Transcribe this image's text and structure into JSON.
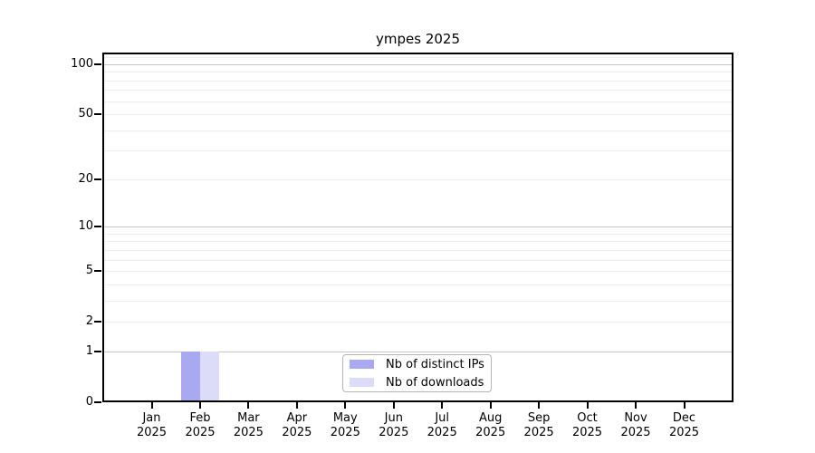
{
  "title": "ympes 2025",
  "chart_data": {
    "type": "bar",
    "title": "ympes 2025",
    "categories": [
      "Jan 2025",
      "Feb 2025",
      "Mar 2025",
      "Apr 2025",
      "May 2025",
      "Jun 2025",
      "Jul 2025",
      "Aug 2025",
      "Sep 2025",
      "Oct 2025",
      "Nov 2025",
      "Dec 2025"
    ],
    "series": [
      {
        "name": "Nb of distinct IPs",
        "color": "#a9a9f1",
        "values": [
          0,
          1,
          0,
          0,
          0,
          0,
          0,
          0,
          0,
          0,
          0,
          0
        ]
      },
      {
        "name": "Nb of downloads",
        "color": "#dcdcf8",
        "values": [
          0,
          1,
          0,
          0,
          0,
          0,
          0,
          0,
          0,
          0,
          0,
          0
        ]
      }
    ],
    "xlabel": "",
    "ylabel": "",
    "yscale": "log1p",
    "ylim": [
      0,
      117.4
    ],
    "y_ticks": [
      100,
      50,
      20,
      10,
      5,
      2,
      1,
      0
    ],
    "y_major_gridlines": [
      1,
      10,
      100
    ],
    "y_minor_gridlines": [
      2,
      3,
      4,
      5,
      6,
      7,
      8,
      9,
      20,
      30,
      40,
      50,
      60,
      70,
      80,
      90,
      110
    ],
    "grid": true,
    "legend_position": "bottom-center"
  },
  "colors": {
    "grid_major": "#c4c4c4",
    "grid_minor": "#eeeeee",
    "axis": "#000000",
    "background": "#ffffff"
  }
}
